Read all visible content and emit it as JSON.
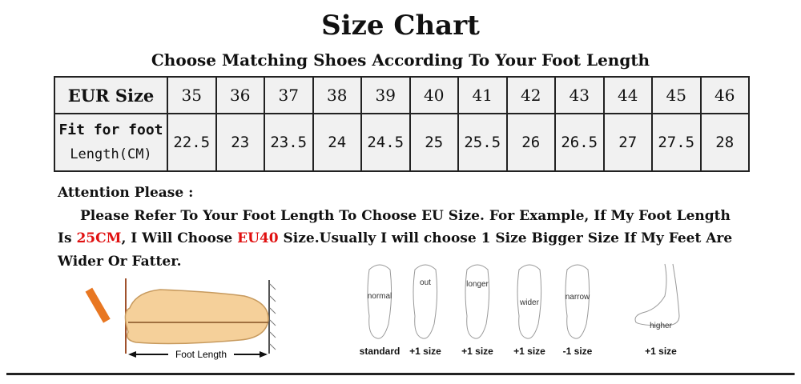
{
  "title": "Size Chart",
  "subtitle": "Choose Matching Shoes According To Your Foot Length",
  "table": {
    "row1_header": "EUR Size",
    "row2_header_line1": "Fit for foot",
    "row2_header_line2": "Length(CM)",
    "eur_sizes": [
      "35",
      "36",
      "37",
      "38",
      "39",
      "40",
      "41",
      "42",
      "43",
      "44",
      "45",
      "46"
    ],
    "foot_lengths": [
      "22.5",
      "23",
      "23.5",
      "24",
      "24.5",
      "25",
      "25.5",
      "26",
      "26.5",
      "27",
      "27.5",
      "28"
    ]
  },
  "attention": {
    "heading": "Attention Please :",
    "text_a": "Please Refer To Your Foot Length To Choose EU Size. For Example, If My Foot Length Is ",
    "highlight1": "25CM",
    "text_b": ", I Will Choose ",
    "highlight2": "EU40",
    "text_c": " Size.Usually I will choose 1 Size Bigger Size If My Feet Are Wider Or Fatter.",
    "highlight_color": "#e01010"
  },
  "measure_diagram": {
    "label": "Foot Length"
  },
  "foot_types": [
    {
      "note": "normal",
      "size": "standard"
    },
    {
      "note": "out",
      "size": "+1 size"
    },
    {
      "note": "longer",
      "size": "+1 size"
    },
    {
      "note": "wider",
      "size": "+1 size"
    },
    {
      "note": "narrow",
      "size": "-1 size"
    },
    {
      "note": "higher",
      "size": "+1 size"
    }
  ]
}
